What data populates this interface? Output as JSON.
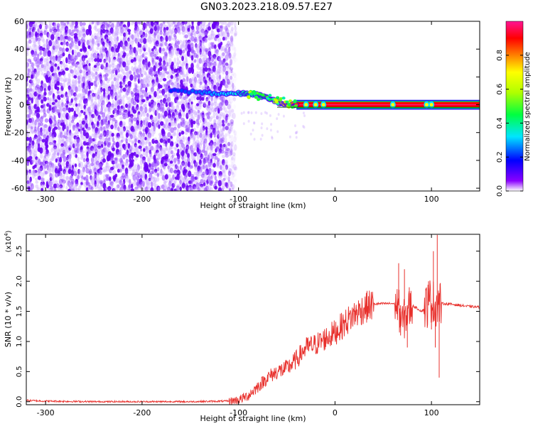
{
  "title": "GN03.2023.218.09.57.E27",
  "chart_data": [
    {
      "type": "heatmap",
      "xlabel": "Height of straight line (km)",
      "ylabel": "Frequency (Hz)",
      "xlim": [
        -320,
        150
      ],
      "ylim": [
        -62,
        60
      ],
      "xticks": [
        -300,
        -200,
        -100,
        0,
        100
      ],
      "yticks": [
        -60,
        -40,
        -20,
        0,
        20,
        40,
        60
      ],
      "colorbar": {
        "label": "Normalized spectral amplitude",
        "range": [
          0.0,
          1.0
        ],
        "ticks": [
          0.0,
          0.2,
          0.4,
          0.6,
          0.8
        ],
        "colormap": "rainbow",
        "colors": [
          "#ffffff",
          "#7a00ff",
          "#0000ff",
          "#00e5ff",
          "#00ff00",
          "#ffff00",
          "#ff8000",
          "#ff0000",
          "#ff1493"
        ]
      },
      "series": [
        {
          "noise_region": {
            "x_range": [
              -320,
              -103
            ],
            "y_range": [
              -62,
              60
            ],
            "typical_amplitude": 0.1
          },
          "signal_track": {
            "x": [
              -170,
              -140,
              -120,
              -100,
              -90,
              -80,
              -70,
              -60,
              -50,
              -40,
              -30,
              -20,
              -10,
              0,
              20,
              50,
              60,
              80,
              100,
              120,
              150
            ],
            "y": [
              10,
              9,
              8,
              8,
              8,
              7,
              5,
              2,
              0,
              0,
              0,
              0,
              0,
              0,
              0,
              0,
              0,
              0,
              0,
              0,
              0
            ],
            "amplitude": [
              0.2,
              0.25,
              0.3,
              0.35,
              0.4,
              0.4,
              0.5,
              0.6,
              0.8,
              0.85,
              0.9,
              0.9,
              0.95,
              0.95,
              0.95,
              0.95,
              0.95,
              0.95,
              0.95,
              0.95,
              0.95
            ]
          }
        }
      ]
    },
    {
      "type": "line",
      "xlabel": "Height of straight line (km)",
      "ylabel": "SNR (10 * v/v)",
      "yscale_label": "(x10",
      "yscale_exp": "4",
      "yscale_close": ")",
      "xlim": [
        -320,
        150
      ],
      "ylim": [
        -0.05,
        2.78
      ],
      "xticks": [
        -300,
        -200,
        -100,
        0,
        100
      ],
      "yticks": [
        0.0,
        0.5,
        1.0,
        1.5,
        2.0,
        2.5
      ],
      "color": "#e8302c",
      "series": [
        {
          "x": [
            -320,
            -300,
            -250,
            -200,
            -150,
            -110,
            -100,
            -90,
            -80,
            -70,
            -60,
            -50,
            -40,
            -30,
            -20,
            -10,
            0,
            10,
            20,
            30,
            40,
            50,
            60,
            65,
            70,
            75,
            80,
            90,
            95,
            100,
            103,
            105,
            110,
            120,
            130,
            140,
            150
          ],
          "y": [
            0.02,
            0.01,
            0.0,
            0.0,
            0.0,
            0.01,
            0.03,
            0.1,
            0.25,
            0.4,
            0.5,
            0.55,
            0.7,
            0.9,
            0.95,
            1.05,
            1.15,
            1.3,
            1.45,
            1.55,
            1.62,
            1.63,
            1.63,
            1.6,
            1.3,
            1.5,
            1.6,
            1.5,
            1.6,
            1.7,
            1.6,
            1.65,
            1.63,
            1.62,
            1.6,
            1.58,
            1.57
          ],
          "spikes": [
            {
              "x": 66,
              "y": 2.3
            },
            {
              "x": 68,
              "y": 1.1
            },
            {
              "x": 72,
              "y": 2.2
            },
            {
              "x": 75,
              "y": 0.9
            },
            {
              "x": 77,
              "y": 1.9
            },
            {
              "x": 97,
              "y": 2.0
            },
            {
              "x": 100,
              "y": 1.2
            },
            {
              "x": 102,
              "y": 2.5
            },
            {
              "x": 104,
              "y": 0.9
            },
            {
              "x": 106,
              "y": 2.77
            },
            {
              "x": 108,
              "y": 0.4
            }
          ]
        }
      ]
    }
  ]
}
